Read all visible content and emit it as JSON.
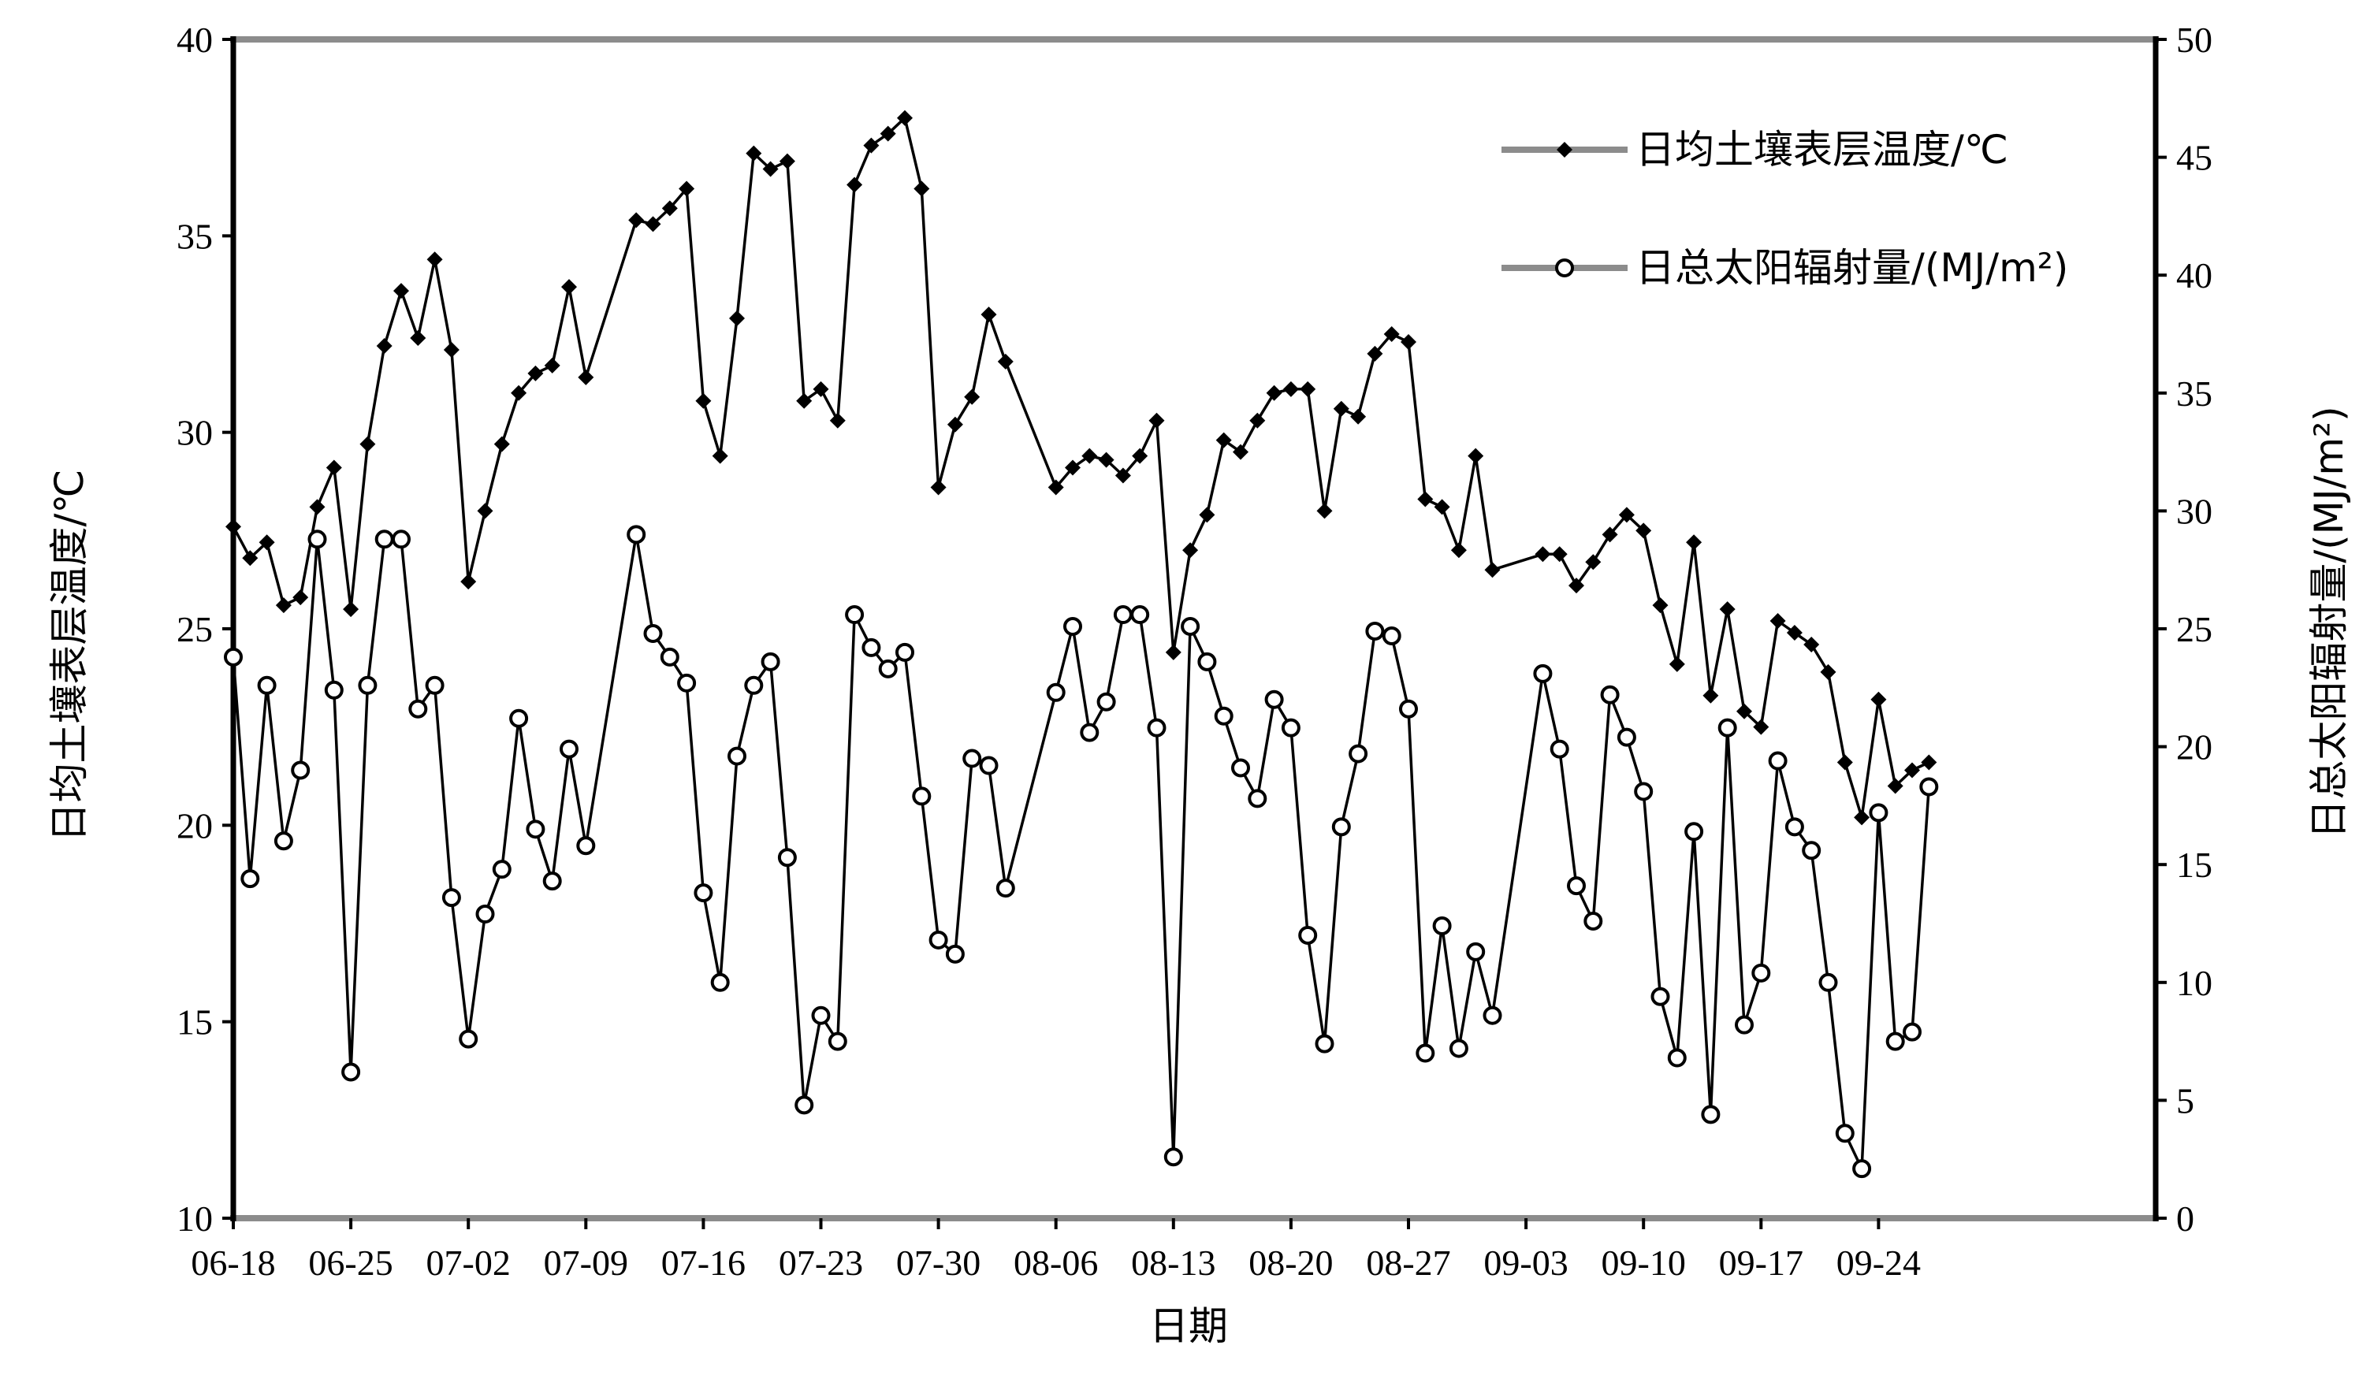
{
  "chart_data": {
    "type": "line",
    "title": "",
    "xlabel": "日期",
    "ylabel_left": "日均土壤表层温度/℃",
    "ylabel_right": "日总太阳辐射量/(MJ/m²)",
    "x_tick_labels": [
      "06-18",
      "06-25",
      "07-02",
      "07-09",
      "07-16",
      "07-23",
      "07-30",
      "08-06",
      "08-13",
      "08-20",
      "08-27",
      "09-03",
      "09-10",
      "09-17",
      "09-24"
    ],
    "y_left_ticks": [
      10,
      15,
      20,
      25,
      30,
      35,
      40
    ],
    "y_right_ticks": [
      0,
      5,
      10,
      15,
      20,
      25,
      30,
      35,
      40,
      45,
      50
    ],
    "ylim_left": [
      10,
      40
    ],
    "ylim_right": [
      0,
      50
    ],
    "x_range_days": [
      0,
      101
    ],
    "legend_position": "top-right",
    "series": [
      {
        "name": "日均土壤表层温度/℃",
        "axis": "left",
        "marker": "filled-diamond",
        "color": "#000000",
        "points": [
          [
            0,
            27.6
          ],
          [
            1,
            26.8
          ],
          [
            2,
            27.2
          ],
          [
            3,
            25.6
          ],
          [
            4,
            25.8
          ],
          [
            5,
            28.1
          ],
          [
            6,
            29.1
          ],
          [
            7,
            25.5
          ],
          [
            8,
            29.7
          ],
          [
            9,
            32.2
          ],
          [
            10,
            33.6
          ],
          [
            11,
            32.4
          ],
          [
            12,
            34.4
          ],
          [
            13,
            32.1
          ],
          [
            14,
            26.2
          ],
          [
            15,
            28
          ],
          [
            16,
            29.7
          ],
          [
            17,
            31
          ],
          [
            18,
            31.5
          ],
          [
            19,
            31.7
          ],
          [
            20,
            33.7
          ],
          [
            21,
            31.4
          ],
          [
            24,
            35.4
          ],
          [
            25,
            35.3
          ],
          [
            26,
            35.7
          ],
          [
            27,
            36.2
          ],
          [
            28,
            30.8
          ],
          [
            29,
            29.4
          ],
          [
            30,
            32.9
          ],
          [
            31,
            37.1
          ],
          [
            32,
            36.7
          ],
          [
            33,
            36.9
          ],
          [
            34,
            30.8
          ],
          [
            35,
            31.1
          ],
          [
            36,
            30.3
          ],
          [
            37,
            36.3
          ],
          [
            38,
            37.3
          ],
          [
            39,
            37.6
          ],
          [
            40,
            38
          ],
          [
            41,
            36.2
          ],
          [
            42,
            28.6
          ],
          [
            43,
            30.2
          ],
          [
            44,
            30.9
          ],
          [
            45,
            33
          ],
          [
            46,
            31.8
          ],
          [
            49,
            28.6
          ],
          [
            50,
            29.1
          ],
          [
            51,
            29.4
          ],
          [
            52,
            29.3
          ],
          [
            53,
            28.9
          ],
          [
            54,
            29.4
          ],
          [
            55,
            30.3
          ],
          [
            56,
            24.4
          ],
          [
            57,
            27
          ],
          [
            58,
            27.9
          ],
          [
            59,
            29.8
          ],
          [
            60,
            29.5
          ],
          [
            61,
            30.3
          ],
          [
            62,
            31
          ],
          [
            63,
            31.1
          ],
          [
            64,
            31.1
          ],
          [
            65,
            28
          ],
          [
            66,
            30.6
          ],
          [
            67,
            30.4
          ],
          [
            68,
            32
          ],
          [
            69,
            32.5
          ],
          [
            70,
            32.3
          ],
          [
            71,
            28.3
          ],
          [
            72,
            28.1
          ],
          [
            73,
            27
          ],
          [
            74,
            29.4
          ],
          [
            75,
            26.5
          ],
          [
            78,
            26.9
          ],
          [
            79,
            26.9
          ],
          [
            80,
            26.1
          ],
          [
            81,
            26.7
          ],
          [
            82,
            27.4
          ],
          [
            83,
            27.9
          ],
          [
            84,
            27.5
          ],
          [
            85,
            25.6
          ],
          [
            86,
            24.1
          ],
          [
            87,
            27.2
          ],
          [
            88,
            23.3
          ],
          [
            89,
            25.5
          ],
          [
            90,
            22.9
          ],
          [
            91,
            22.5
          ],
          [
            92,
            25.2
          ],
          [
            93,
            24.9
          ],
          [
            94,
            24.6
          ],
          [
            95,
            23.9
          ],
          [
            96,
            21.6
          ],
          [
            97,
            20.2
          ],
          [
            98,
            23.2
          ],
          [
            99,
            21
          ],
          [
            100,
            21.4
          ],
          [
            101,
            21.6
          ]
        ]
      },
      {
        "name": "日总太阳辐射量/(MJ/m²)",
        "axis": "right",
        "marker": "open-circle",
        "color": "#000000",
        "points": [
          [
            0,
            23.8
          ],
          [
            1,
            14.4
          ],
          [
            2,
            22.6
          ],
          [
            3,
            16
          ],
          [
            4,
            19
          ],
          [
            5,
            28.8
          ],
          [
            6,
            22.4
          ],
          [
            7,
            6.2
          ],
          [
            8,
            22.6
          ],
          [
            9,
            28.8
          ],
          [
            10,
            28.8
          ],
          [
            11,
            21.6
          ],
          [
            12,
            22.6
          ],
          [
            13,
            13.6
          ],
          [
            14,
            7.6
          ],
          [
            15,
            12.9
          ],
          [
            16,
            14.8
          ],
          [
            17,
            21.2
          ],
          [
            18,
            16.5
          ],
          [
            19,
            14.3
          ],
          [
            20,
            19.9
          ],
          [
            21,
            15.8
          ],
          [
            24,
            29
          ],
          [
            25,
            24.8
          ],
          [
            26,
            23.8
          ],
          [
            27,
            22.7
          ],
          [
            28,
            13.8
          ],
          [
            29,
            10
          ],
          [
            30,
            19.6
          ],
          [
            31,
            22.6
          ],
          [
            32,
            23.6
          ],
          [
            33,
            15.3
          ],
          [
            34,
            4.8
          ],
          [
            35,
            8.6
          ],
          [
            36,
            7.5
          ],
          [
            37,
            25.6
          ],
          [
            38,
            24.2
          ],
          [
            39,
            23.3
          ],
          [
            40,
            24
          ],
          [
            41,
            17.9
          ],
          [
            42,
            11.8
          ],
          [
            43,
            11.2
          ],
          [
            44,
            19.5
          ],
          [
            45,
            19.2
          ],
          [
            46,
            14
          ],
          [
            49,
            22.3
          ],
          [
            50,
            25.1
          ],
          [
            51,
            20.6
          ],
          [
            52,
            21.9
          ],
          [
            53,
            25.6
          ],
          [
            54,
            25.6
          ],
          [
            55,
            20.8
          ],
          [
            56,
            2.6
          ],
          [
            57,
            25.1
          ],
          [
            58,
            23.6
          ],
          [
            59,
            21.3
          ],
          [
            60,
            19.1
          ],
          [
            61,
            17.8
          ],
          [
            62,
            22
          ],
          [
            63,
            20.8
          ],
          [
            64,
            12
          ],
          [
            65,
            7.4
          ],
          [
            66,
            16.6
          ],
          [
            67,
            19.7
          ],
          [
            68,
            24.9
          ],
          [
            69,
            24.7
          ],
          [
            70,
            21.6
          ],
          [
            71,
            7
          ],
          [
            72,
            12.4
          ],
          [
            73,
            7.2
          ],
          [
            74,
            11.3
          ],
          [
            75,
            8.6
          ],
          [
            78,
            23.1
          ],
          [
            79,
            19.9
          ],
          [
            80,
            14.1
          ],
          [
            81,
            12.6
          ],
          [
            82,
            22.2
          ],
          [
            83,
            20.4
          ],
          [
            84,
            18.1
          ],
          [
            85,
            9.4
          ],
          [
            86,
            6.8
          ],
          [
            87,
            16.4
          ],
          [
            88,
            4.4
          ],
          [
            89,
            20.8
          ],
          [
            90,
            8.2
          ],
          [
            91,
            10.4
          ],
          [
            92,
            19.4
          ],
          [
            93,
            16.6
          ],
          [
            94,
            15.6
          ],
          [
            95,
            10
          ],
          [
            96,
            3.6
          ],
          [
            97,
            2.1
          ],
          [
            98,
            17.2
          ],
          [
            99,
            7.5
          ],
          [
            100,
            7.9
          ],
          [
            101,
            18.3
          ]
        ]
      }
    ]
  }
}
